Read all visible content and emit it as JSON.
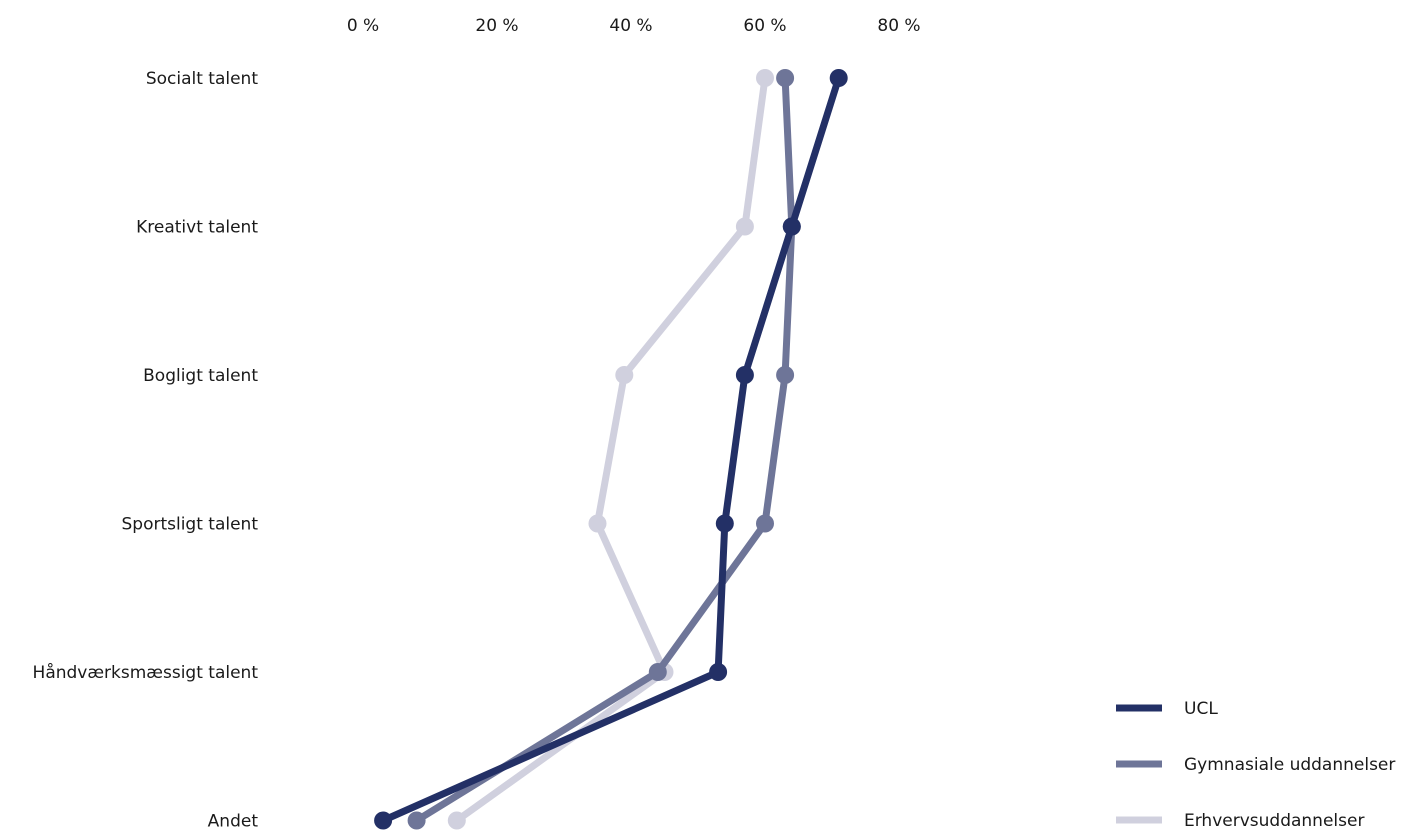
{
  "chart_data": {
    "type": "line",
    "orientation": "horizontal",
    "x_ticks": [
      "0 %",
      "20 %",
      "40 %",
      "60 %",
      "80 %"
    ],
    "x_tick_values": [
      0,
      20,
      40,
      60,
      80
    ],
    "categories": [
      "Socialt talent",
      "Kreativt talent",
      "Bogligt talent",
      "Sportsligt talent",
      "Håndværksmæssigt talent",
      "Andet"
    ],
    "series": [
      {
        "name": "Erhvervsuddannelser",
        "color": "#d0d0de",
        "values": [
          60,
          57,
          39,
          35,
          45,
          14
        ]
      },
      {
        "name": "Gymnasiale uddannelser",
        "color": "#6e7598",
        "values": [
          63,
          64,
          63,
          60,
          44,
          8
        ]
      },
      {
        "name": "UCL",
        "color": "#233066",
        "values": [
          71,
          64,
          57,
          54,
          53,
          3
        ]
      }
    ],
    "legend_order": [
      2,
      1,
      0
    ],
    "legend_position": "bottom-right"
  }
}
